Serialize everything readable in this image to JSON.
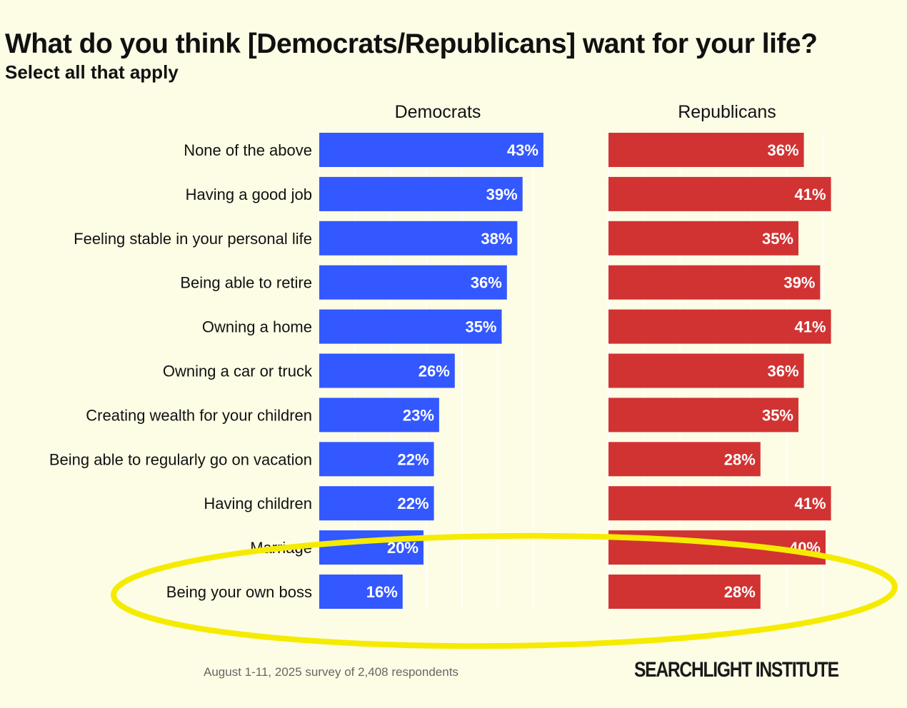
{
  "chart_data": {
    "type": "bar",
    "title": "What do you think [Democrats/Republicans] want for your life?",
    "subtitle": "Select all that apply",
    "categories": [
      "None of the above",
      "Having a good job",
      "Feeling stable in your personal life",
      "Being able to retire",
      "Owning a home",
      "Owning a car or truck",
      "Creating wealth for your children",
      "Being able to regularly go on vacation",
      "Having children",
      "Marriage",
      "Being your own boss"
    ],
    "series": [
      {
        "name": "Democrats",
        "color": "#3358ff",
        "values": [
          43,
          39,
          38,
          36,
          35,
          26,
          23,
          22,
          22,
          20,
          16
        ]
      },
      {
        "name": "Republicans",
        "color": "#d13333",
        "values": [
          36,
          41,
          35,
          39,
          41,
          36,
          35,
          28,
          41,
          40,
          28
        ]
      }
    ],
    "value_suffix": "%",
    "xlabel": "",
    "ylabel": "",
    "annotation": {
      "type": "ellipse-highlight",
      "color": "#f5eb00",
      "target": "Being your own boss"
    }
  },
  "footer": {
    "source": "August 1-11, 2025 survey of 2,408 respondents",
    "logo": "SEARCHLIGHT INSTITUTE"
  }
}
